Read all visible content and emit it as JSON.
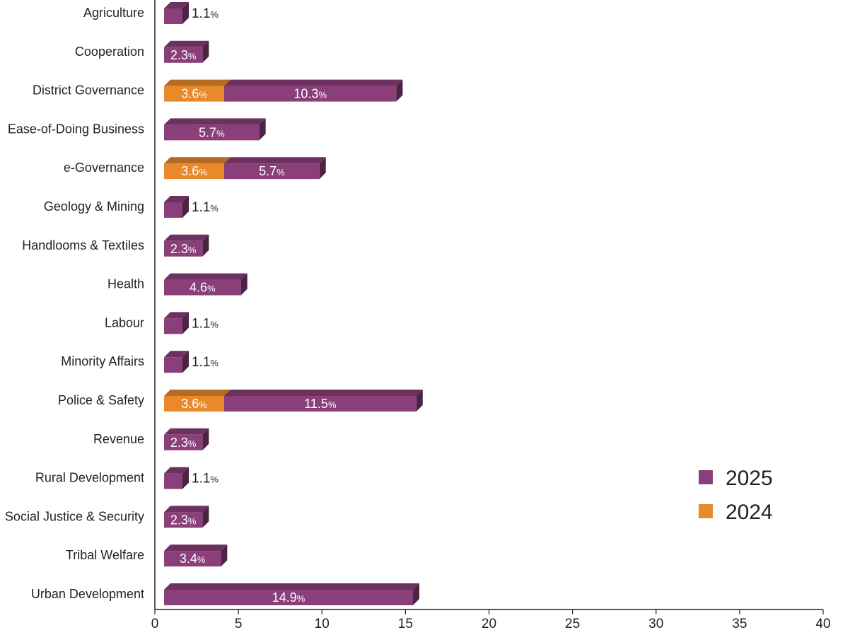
{
  "chart_data": {
    "type": "bar",
    "orientation": "horizontal",
    "stacked": true,
    "bar_style": "3d",
    "categories": [
      "Agriculture",
      "Cooperation",
      "District Governance",
      "Ease-of-Doing Business",
      "e-Governance",
      "Geology & Mining",
      "Handlooms & Textiles",
      "Health",
      "Labour",
      "Minority Affairs",
      "Police & Safety",
      "Revenue",
      "Rural Development",
      "Social Justice & Security",
      "Tribal Welfare",
      "Urban Development"
    ],
    "series": [
      {
        "name": "2024",
        "color": "#e8892b",
        "values": [
          null,
          null,
          3.6,
          null,
          3.6,
          null,
          null,
          null,
          null,
          null,
          3.6,
          null,
          null,
          null,
          null,
          null
        ],
        "labels": [
          null,
          null,
          "3.6",
          null,
          "3.6",
          null,
          null,
          null,
          null,
          null,
          "3.6",
          null,
          null,
          null,
          null,
          null
        ]
      },
      {
        "name": "2025",
        "color": "#8a3f7a",
        "values": [
          1.1,
          2.3,
          10.3,
          5.7,
          5.7,
          1.1,
          2.3,
          4.6,
          1.1,
          1.1,
          11.5,
          2.3,
          1.1,
          2.3,
          3.4,
          14.9
        ],
        "labels": [
          "1.1",
          "2.3",
          "10.3",
          "5.7",
          "5.7",
          "1.1",
          "2.3",
          "4.6",
          "1.1",
          "1.1",
          "11.5",
          "2.3",
          "1.1",
          "2.3",
          "3.4",
          "14.9"
        ]
      }
    ],
    "value_suffix": "%",
    "x_ticks": [
      "0",
      "5",
      "10",
      "15",
      "20",
      "25",
      "30",
      "35",
      "40"
    ],
    "xlim": [
      0,
      40
    ],
    "legend": {
      "position": "right",
      "items": [
        {
          "label": "2025",
          "color": "#8a3f7a"
        },
        {
          "label": "2024",
          "color": "#e8892b"
        }
      ]
    },
    "title": "",
    "xlabel": "",
    "ylabel": "",
    "grid": false
  }
}
